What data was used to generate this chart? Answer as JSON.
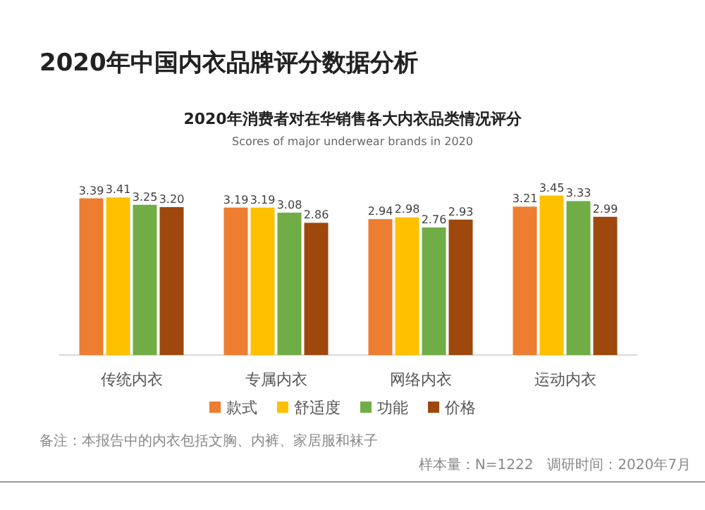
{
  "chart_data": {
    "type": "bar",
    "title": "2020年中国内衣品牌评分数据分析",
    "subtitle": "2020年消费者对在华销售各大内衣品类情况评分",
    "xlabel": "Scores of major underwear brands in 2020",
    "categories": [
      "传统内衣",
      "专属内衣",
      "网络内衣",
      "运动内衣"
    ],
    "series": [
      {
        "name": "款式",
        "color": "#ed7d31",
        "values": [
          3.39,
          3.19,
          2.94,
          3.21
        ],
        "value_labels": [
          "3.39",
          "3.19",
          "2.94",
          "3.21"
        ]
      },
      {
        "name": "舒适度",
        "color": "#ffc000",
        "values": [
          3.41,
          3.19,
          2.98,
          3.45
        ],
        "value_labels": [
          "3.41",
          "3.19",
          "2.98",
          "3.45"
        ]
      },
      {
        "name": "功能",
        "color": "#70ad47",
        "values": [
          3.25,
          3.08,
          2.76,
          3.33
        ],
        "value_labels": [
          "3.25",
          "3.08",
          "2.76",
          "3.33"
        ]
      },
      {
        "name": "价格",
        "color": "#9e480e",
        "values": [
          3.2,
          2.86,
          2.93,
          2.99
        ],
        "value_labels": [
          "3.20",
          "2.86",
          "2.93",
          "2.99"
        ]
      }
    ],
    "legend": "bottom",
    "annotations": [
      "备注：本报告中的内衣包括文胸、内裤、家居服和袜子",
      "样本量：N=1222　调研时间：2020年7月"
    ]
  }
}
